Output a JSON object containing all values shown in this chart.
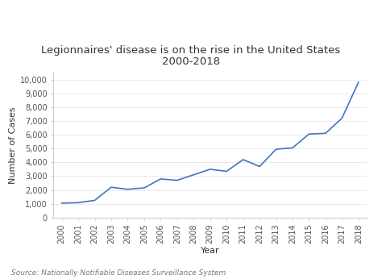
{
  "title_line1": "Legionnaires' disease is on the rise in the United States",
  "title_line2": "2000-2018",
  "xlabel": "Year",
  "ylabel": "Number of Cases",
  "source": "Source: Nationally Notifiable Diseases Surveillance System",
  "line_color": "#4472C4",
  "background_color": "#ffffff",
  "years": [
    2000,
    2001,
    2002,
    2003,
    2004,
    2005,
    2006,
    2007,
    2008,
    2009,
    2010,
    2011,
    2012,
    2013,
    2014,
    2015,
    2016,
    2017,
    2018
  ],
  "cases": [
    1050,
    1080,
    1250,
    2200,
    2050,
    2150,
    2800,
    2700,
    3100,
    3500,
    3350,
    4200,
    3700,
    4950,
    5050,
    6050,
    6100,
    7200,
    9800
  ],
  "ylim": [
    0,
    10500
  ],
  "yticks": [
    0,
    1000,
    2000,
    3000,
    4000,
    5000,
    6000,
    7000,
    8000,
    9000,
    10000
  ],
  "ytick_labels": [
    "0",
    "1,000",
    "2,000",
    "3,000",
    "4,000",
    "5,000",
    "6,000",
    "7,000",
    "8,000",
    "9,000",
    "10,000"
  ],
  "title_fontsize": 9.5,
  "axis_label_fontsize": 8,
  "tick_fontsize": 7,
  "source_fontsize": 6.5
}
